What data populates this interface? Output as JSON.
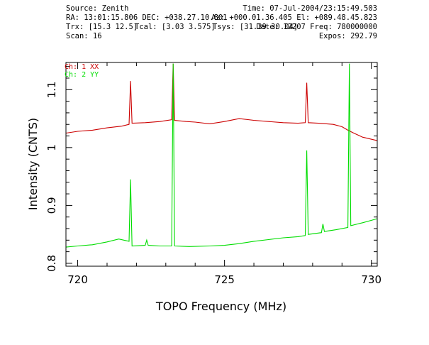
{
  "header": {
    "source": "Source: Zenith",
    "time": "Time: 07-Jul-2004/23:15:49.503",
    "ra_dec": "RA: 13:01:15.806  DEC: +038.27.10.801",
    "az_el": "Az: +000.01.36.405  El: +089.48.45.823",
    "trx": "Trx: [15.3 12.5]",
    "tcal": "Tcal: [3.03 3.575]",
    "tsys": "Tsys: [31.39 30.04]",
    "date_freq": "Date: 12207  Freq: 780000000",
    "scan": "Scan: 16",
    "expos": "Expos: 292.79"
  },
  "colors": {
    "ch1": "#cc0000",
    "ch2": "#00dd00",
    "axes": "#000000"
  },
  "chart_data": {
    "type": "line",
    "title": "",
    "xlabel": "TOPO Frequency (MHz)",
    "ylabel": "Intensity (CNTS)",
    "xlim": [
      719.6,
      730.2
    ],
    "ylim": [
      0.795,
      1.147
    ],
    "xticks": [
      720,
      725,
      730
    ],
    "yticks": [
      0.8,
      0.9,
      1,
      1.1
    ],
    "ytick_labels": [
      "0.8",
      "0.9",
      "1",
      "1.1"
    ],
    "xtick_labels": [
      "720",
      "725",
      "730"
    ],
    "grid": false,
    "legend_position": "top-left",
    "series": [
      {
        "name": "Ch: 1 XX",
        "x": [
          719.6,
          720.0,
          720.5,
          721.0,
          721.5,
          721.75,
          721.8,
          721.85,
          722.3,
          722.8,
          723.2,
          723.25,
          723.3,
          723.7,
          724.0,
          724.5,
          725.0,
          725.5,
          726.0,
          726.5,
          727.0,
          727.5,
          727.75,
          727.8,
          727.85,
          728.2,
          728.7,
          729.0,
          729.2,
          729.4,
          729.7,
          730.2
        ],
        "y": [
          1.025,
          1.028,
          1.03,
          1.034,
          1.037,
          1.04,
          1.115,
          1.042,
          1.043,
          1.045,
          1.048,
          1.145,
          1.047,
          1.045,
          1.044,
          1.041,
          1.045,
          1.05,
          1.047,
          1.045,
          1.043,
          1.042,
          1.043,
          1.112,
          1.043,
          1.042,
          1.04,
          1.036,
          1.03,
          1.025,
          1.018,
          1.012
        ]
      },
      {
        "name": "Ch: 2 YY",
        "x": [
          719.6,
          720.0,
          720.5,
          721.0,
          721.4,
          721.75,
          721.8,
          721.85,
          722.3,
          722.35,
          722.4,
          722.8,
          723.2,
          723.25,
          723.3,
          723.8,
          724.5,
          725.0,
          725.5,
          726.0,
          726.5,
          727.0,
          727.5,
          727.75,
          727.8,
          727.85,
          728.3,
          728.35,
          728.4,
          728.8,
          729.2,
          729.25,
          729.3,
          729.7,
          730.2
        ],
        "y": [
          0.828,
          0.83,
          0.832,
          0.837,
          0.842,
          0.838,
          0.945,
          0.83,
          0.831,
          0.84,
          0.831,
          0.83,
          0.83,
          1.145,
          0.83,
          0.829,
          0.83,
          0.831,
          0.834,
          0.838,
          0.841,
          0.844,
          0.846,
          0.848,
          0.995,
          0.85,
          0.853,
          0.868,
          0.855,
          0.858,
          0.862,
          1.145,
          0.865,
          0.87,
          0.877
        ]
      }
    ]
  }
}
